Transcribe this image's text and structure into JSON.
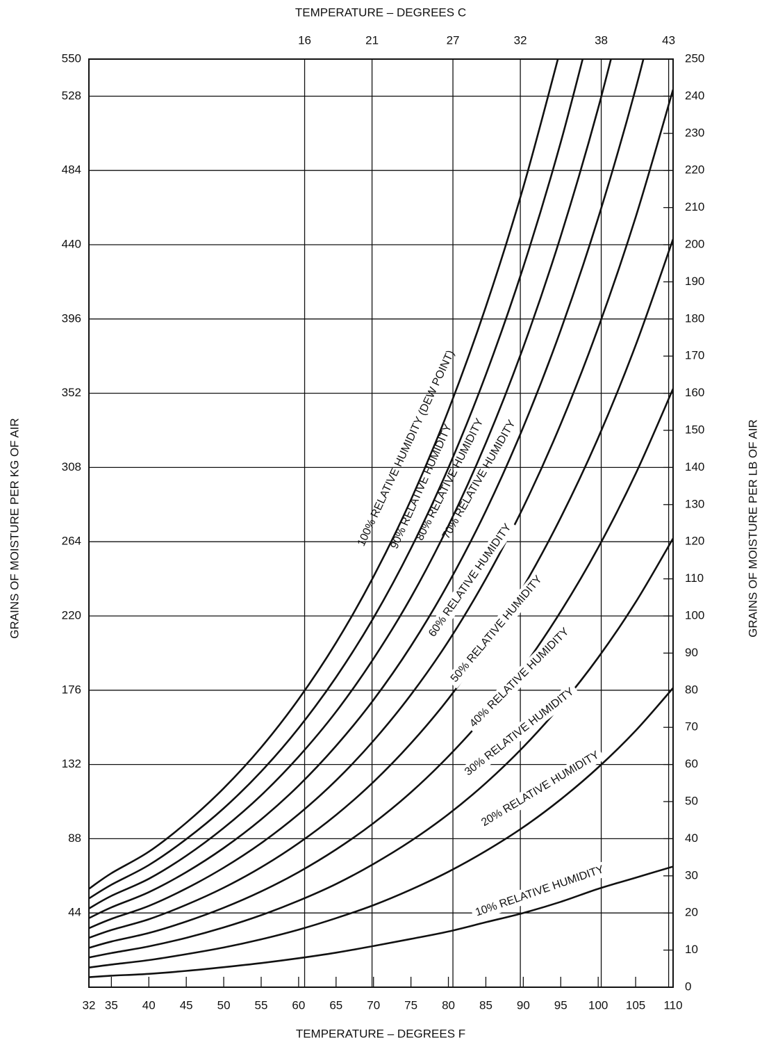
{
  "chart_data": {
    "type": "line",
    "x2_label": "TEMPERATURE – DEGREES C",
    "x_label": "TEMPERATURE – DEGREES F",
    "y_label": "GRAINS OF MOISTURE PER KG OF AIR",
    "y2_label": "GRAINS OF MOISTURE PER LB OF AIR",
    "x": [
      32,
      35,
      40,
      45,
      50,
      55,
      60,
      65,
      70,
      75,
      80,
      85,
      90,
      95,
      100,
      105,
      110
    ],
    "xlim": [
      32,
      110
    ],
    "xticks": [
      32,
      35,
      40,
      45,
      50,
      55,
      60,
      65,
      70,
      75,
      80,
      85,
      90,
      95,
      100,
      105,
      110
    ],
    "x2lim": [
      0,
      43.33
    ],
    "x2ticks": [
      16,
      21,
      27,
      32,
      38,
      43
    ],
    "ylim": [
      0,
      550
    ],
    "yticks": [
      44,
      88,
      132,
      176,
      220,
      264,
      308,
      352,
      396,
      440,
      484,
      528,
      550
    ],
    "y2lim": [
      0,
      250
    ],
    "y2ticks": [
      0,
      10,
      20,
      30,
      40,
      50,
      60,
      70,
      80,
      90,
      100,
      110,
      120,
      130,
      140,
      150,
      160,
      170,
      180,
      190,
      200,
      210,
      220,
      230,
      240,
      250
    ],
    "grid": true,
    "color": "#111111",
    "series": [
      {
        "name": "100% RELATIVE HUMIDITY (DEW POINT)",
        "axis": "y2",
        "color": "#111111",
        "values": [
          26.5,
          30.7,
          36.5,
          44.3,
          53.6,
          64.6,
          77.6,
          92.8,
          110.6,
          131.3,
          155.4,
          183.3,
          215.5,
          252.9,
          null,
          null,
          null
        ]
      },
      {
        "name": "90% RELATIVE HUMIDITY",
        "axis": "y2",
        "color": "#111111",
        "values": [
          23.9,
          27.6,
          32.9,
          39.9,
          48.2,
          58.1,
          69.8,
          83.5,
          99.5,
          118.2,
          139.9,
          165,
          194,
          227.6,
          266.4,
          null,
          null
        ]
      },
      {
        "name": "80% RELATIVE HUMIDITY",
        "axis": "y2",
        "color": "#111111",
        "values": [
          21.2,
          24.6,
          29.2,
          35.4,
          42.9,
          51.7,
          62.1,
          74.2,
          88.5,
          105,
          124.3,
          146.6,
          172.4,
          202.3,
          236.8,
          276.6,
          null
        ]
      },
      {
        "name": "70% RELATIVE HUMIDITY",
        "axis": "y2",
        "color": "#111111",
        "values": [
          18.6,
          21.5,
          25.6,
          31,
          37.5,
          45.2,
          54.3,
          65,
          77.4,
          91.9,
          108.8,
          128.3,
          150.9,
          177,
          207.2,
          242,
          282.1
        ]
      },
      {
        "name": "60% RELATIVE HUMIDITY",
        "axis": "y2",
        "color": "#111111",
        "values": [
          15.9,
          18.4,
          21.9,
          26.6,
          32.2,
          38.8,
          46.6,
          55.7,
          66.4,
          78.8,
          93.2,
          110,
          129.3,
          151.7,
          177.6,
          207.4,
          241.8
        ]
      },
      {
        "name": "50% RELATIVE HUMIDITY",
        "axis": "y2",
        "color": "#111111",
        "values": [
          13.3,
          15.4,
          18.3,
          22.2,
          26.8,
          32.3,
          38.8,
          46.4,
          55.3,
          65.7,
          77.7,
          91.7,
          107.8,
          126.5,
          148,
          172.9,
          201.5
        ]
      },
      {
        "name": "40% RELATIVE HUMIDITY",
        "axis": "y2",
        "color": "#111111",
        "values": [
          10.6,
          12.3,
          14.6,
          17.7,
          21.4,
          25.8,
          31,
          37.1,
          44.2,
          52.5,
          62.2,
          73.3,
          86.2,
          101.2,
          118.4,
          138.3,
          161.2
        ]
      },
      {
        "name": "30% RELATIVE HUMIDITY",
        "axis": "y2",
        "color": "#111111",
        "values": [
          8,
          9.2,
          11,
          13.3,
          16.1,
          19.4,
          23.3,
          27.8,
          33.2,
          39.4,
          46.6,
          55,
          64.7,
          75.9,
          88.8,
          103.7,
          120.9
        ]
      },
      {
        "name": "20% RELATIVE HUMIDITY",
        "axis": "y2",
        "color": "#111111",
        "values": [
          5.3,
          6.1,
          7.3,
          8.9,
          10.7,
          12.9,
          15.5,
          18.6,
          22.1,
          26.3,
          31.1,
          36.7,
          43.1,
          50.6,
          59.2,
          69.1,
          80.6
        ]
      },
      {
        "name": "10% RELATIVE HUMIDITY",
        "axis": "y2",
        "color": "#111111",
        "values": [
          2.7,
          3.1,
          3.6,
          4.4,
          5.4,
          6.5,
          7.8,
          9.3,
          11.1,
          13,
          15,
          17.5,
          20,
          23,
          26.5,
          29.5,
          32.5
        ]
      }
    ]
  }
}
